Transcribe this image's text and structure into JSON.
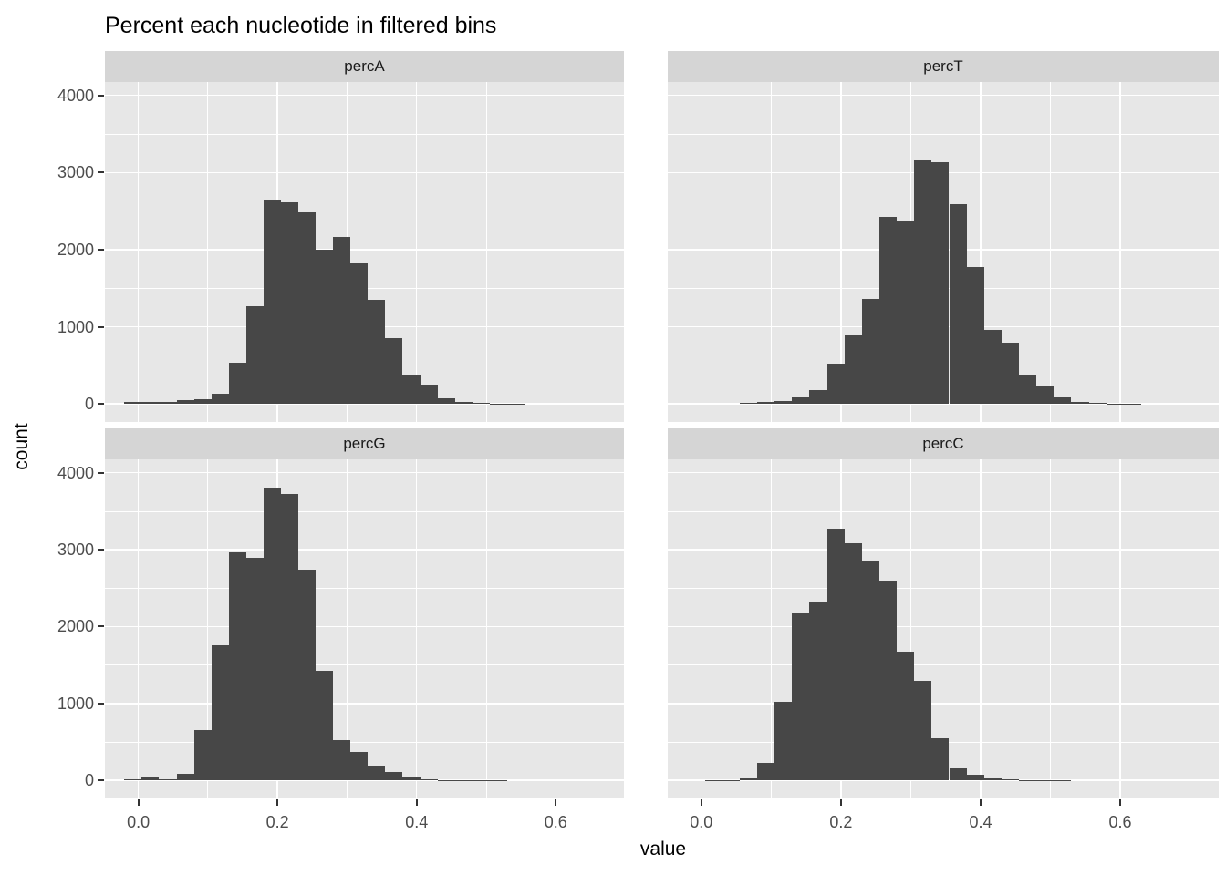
{
  "title": "Percent each nucleotide in filtered bins",
  "x_axis_title": "value",
  "y_axis_title": "count",
  "colors": {
    "bar": "#474747",
    "panel_bg": "#E7E7E7",
    "strip_bg": "#D5D5D5",
    "grid": "#FFFFFF",
    "axis_text": "#4D4D4D",
    "strip_text": "#1A1A1A",
    "tick_mark": "#333333",
    "title_text": "#000000"
  },
  "chart_data": {
    "type": "bar",
    "subtype": "faceted-histogram",
    "title": "Percent each nucleotide in filtered bins",
    "xlabel": "value",
    "ylabel": "count",
    "legend": "none",
    "grid": "on",
    "bin_width": 0.025,
    "x_ticks": [
      0.0,
      0.2,
      0.4,
      0.6
    ],
    "x_tick_labels": [
      "0.0",
      "0.2",
      "0.4",
      "0.6"
    ],
    "x_minor_ticks": [
      0.1,
      0.3,
      0.5,
      0.7
    ],
    "y_ticks": [
      0,
      1000,
      2000,
      3000,
      4000
    ],
    "y_tick_labels": [
      "0",
      "1000",
      "2000",
      "3000",
      "4000"
    ],
    "y_minor_ticks": [
      500,
      1500,
      2500,
      3500
    ],
    "ylim": [
      0,
      4000
    ],
    "xlim": [
      0.0,
      0.7
    ],
    "facets": [
      {
        "label": "percA",
        "row": 0,
        "col": 0,
        "first_bin_left_edge": -0.02,
        "counts": [
          20,
          20,
          30,
          45,
          65,
          130,
          535,
          1270,
          2650,
          2620,
          2480,
          2000,
          2170,
          1820,
          1350,
          850,
          375,
          245,
          70,
          20,
          10,
          5,
          3
        ]
      },
      {
        "label": "percT",
        "row": 0,
        "col": 1,
        "first_bin_left_edge": 0.055,
        "counts": [
          8,
          20,
          32,
          90,
          180,
          525,
          905,
          1365,
          2430,
          2370,
          3170,
          3140,
          2590,
          1770,
          960,
          790,
          385,
          225,
          80,
          20,
          8,
          3,
          2
        ]
      },
      {
        "label": "percG",
        "row": 1,
        "col": 0,
        "first_bin_left_edge": -0.02,
        "counts": [
          12,
          32,
          10,
          90,
          655,
          1755,
          2970,
          2890,
          3810,
          3730,
          2740,
          1420,
          525,
          367,
          190,
          105,
          32,
          16,
          8,
          4,
          2,
          2
        ]
      },
      {
        "label": "percC",
        "row": 1,
        "col": 1,
        "first_bin_left_edge": 0.005,
        "counts": [
          5,
          8,
          30,
          230,
          1020,
          2170,
          2330,
          3270,
          3090,
          2850,
          2600,
          1670,
          1300,
          550,
          160,
          79,
          20,
          10,
          6,
          3,
          2
        ]
      }
    ]
  }
}
